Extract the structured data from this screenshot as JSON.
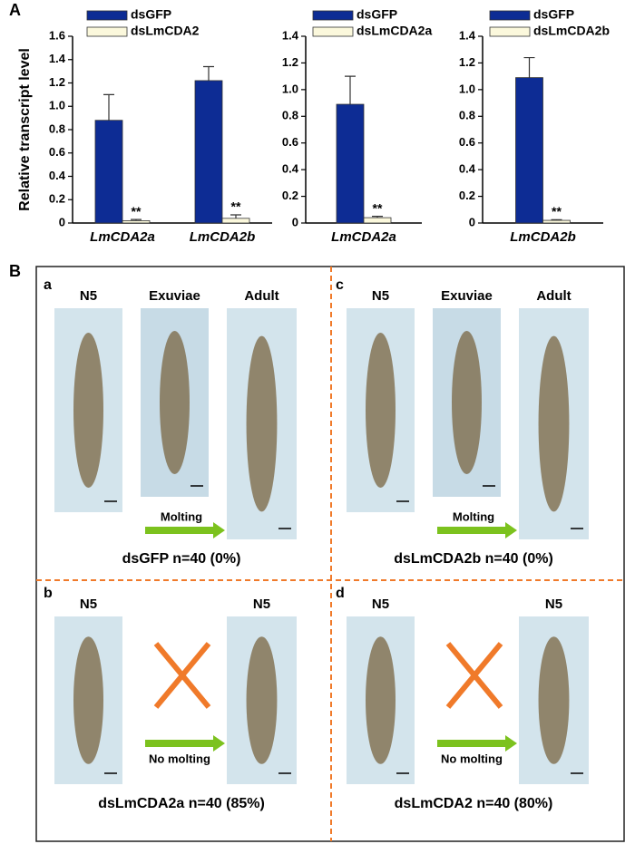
{
  "panel_labels": [
    "A",
    "B"
  ],
  "chart_data": [
    {
      "type": "bar",
      "y_label": "Relative transcript level",
      "categories": [
        "LmCDA2a",
        "LmCDA2b"
      ],
      "ylim": [
        0,
        1.6
      ],
      "yticks": [
        0,
        0.2,
        0.4,
        0.6,
        0.8,
        {
          "value": 1,
          "label": "1.0"
        },
        1.2,
        1.4,
        1.6
      ],
      "series": [
        {
          "name": "dsGFP",
          "color": "#0d2c94",
          "values": [
            0.88,
            1.22
          ],
          "errors": [
            0.22,
            0.12
          ]
        },
        {
          "name": "dsLmCDA2",
          "color": "#fbf8dc",
          "values": [
            0.02,
            0.04
          ],
          "errors": [
            0.01,
            0.03
          ],
          "annotations": [
            "**",
            "**"
          ]
        }
      ]
    },
    {
      "type": "bar",
      "categories": [
        "LmCDA2a"
      ],
      "ylim": [
        0,
        1.4
      ],
      "yticks": [
        0,
        0.2,
        0.4,
        0.6,
        0.8,
        {
          "value": 1,
          "label": "1.0"
        },
        1.2,
        1.4
      ],
      "series": [
        {
          "name": "dsGFP",
          "color": "#0d2c94",
          "values": [
            0.89
          ],
          "errors": [
            0.21
          ]
        },
        {
          "name": "dsLmCDA2a",
          "color": "#fbf8dc",
          "values": [
            0.04
          ],
          "errors": [
            0.01
          ],
          "annotations": [
            "**"
          ]
        }
      ]
    },
    {
      "type": "bar",
      "categories": [
        "LmCDA2b"
      ],
      "ylim": [
        0,
        1.4
      ],
      "yticks": [
        0,
        0.2,
        0.4,
        0.6,
        0.8,
        {
          "value": 1,
          "label": "1.0"
        },
        1.2,
        1.4
      ],
      "series": [
        {
          "name": "dsGFP",
          "color": "#0d2c94",
          "values": [
            1.09
          ],
          "errors": [
            0.15
          ]
        },
        {
          "name": "dsLmCDA2b",
          "color": "#fbf8dc",
          "values": [
            0.02
          ],
          "errors": [
            0.005
          ],
          "annotations": [
            "**"
          ]
        }
      ]
    }
  ],
  "panel_b": [
    {
      "label": "a",
      "images": [
        "N5",
        "Exuviae",
        "Adult"
      ],
      "arrow": "Molting",
      "caption": "dsGFP  n=40 (0%)"
    },
    {
      "label": "c",
      "images": [
        "N5",
        "Exuviae",
        "Adult"
      ],
      "arrow": "Molting",
      "caption": "dsLmCDA2b n=40 (0%)"
    },
    {
      "label": "b",
      "images": [
        "N5",
        "N5"
      ],
      "arrow": "No molting",
      "caption": "dsLmCDA2a n=40 (85%)"
    },
    {
      "label": "d",
      "images": [
        "N5",
        "N5"
      ],
      "arrow": "No molting",
      "caption": "dsLmCDA2 n=40 (80%)"
    }
  ]
}
